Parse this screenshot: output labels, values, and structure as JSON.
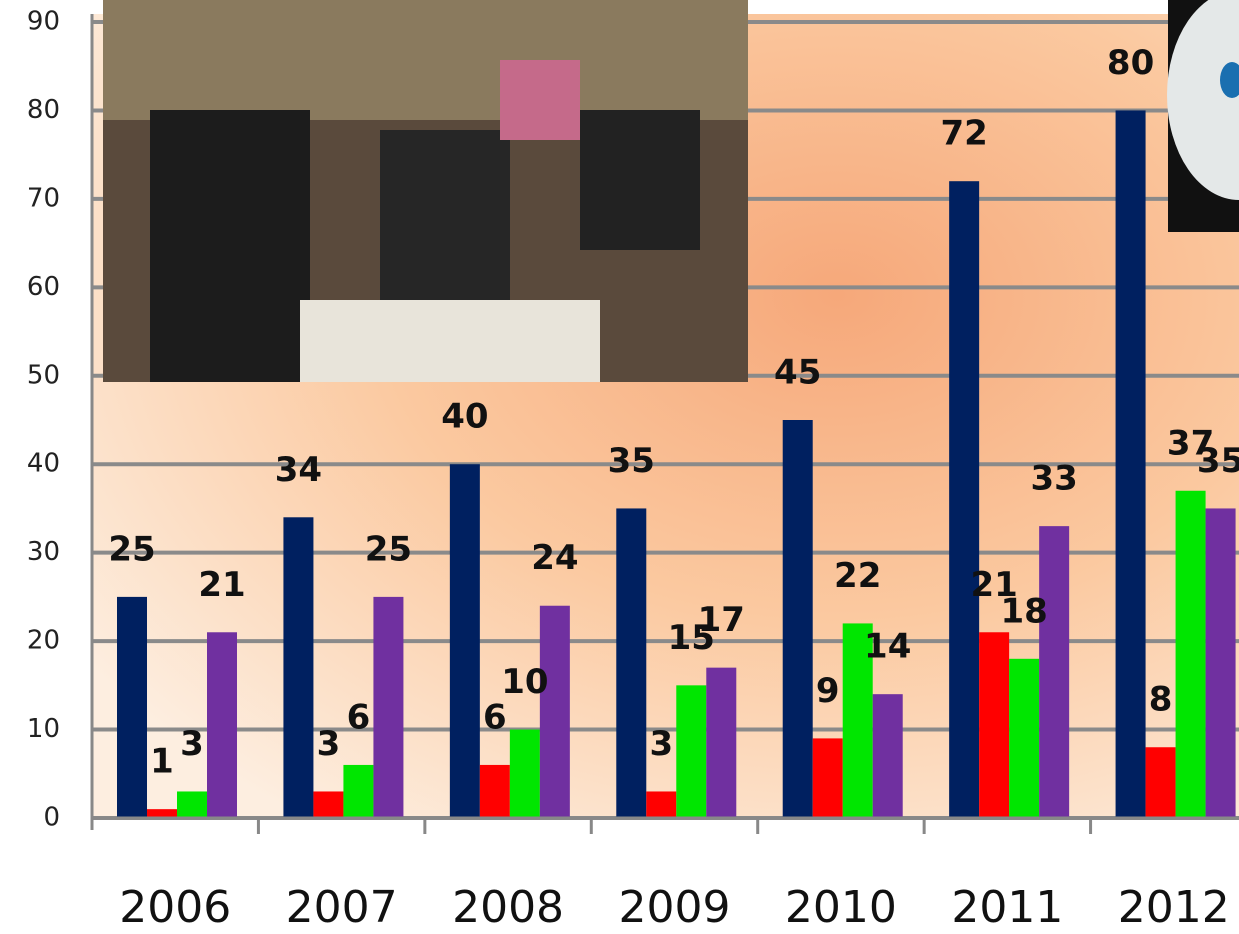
{
  "chart_data": {
    "type": "bar",
    "categories": [
      "2006",
      "2007",
      "2008",
      "2009",
      "2010",
      "2011",
      "2012"
    ],
    "series": [
      {
        "color": "#002060",
        "values": [
          25,
          34,
          40,
          35,
          45,
          72,
          80
        ]
      },
      {
        "color": "#ff0000",
        "values": [
          1,
          3,
          6,
          3,
          9,
          21,
          8
        ]
      },
      {
        "color": "#00e600",
        "values": [
          3,
          6,
          10,
          15,
          22,
          18,
          37
        ]
      },
      {
        "color": "#7030a0",
        "values": [
          21,
          25,
          24,
          17,
          14,
          33,
          35
        ]
      }
    ],
    "ylim": [
      0,
      90
    ],
    "yticks": [
      0,
      10,
      20,
      30,
      40,
      50,
      60,
      70,
      80,
      90
    ],
    "grid": true
  }
}
